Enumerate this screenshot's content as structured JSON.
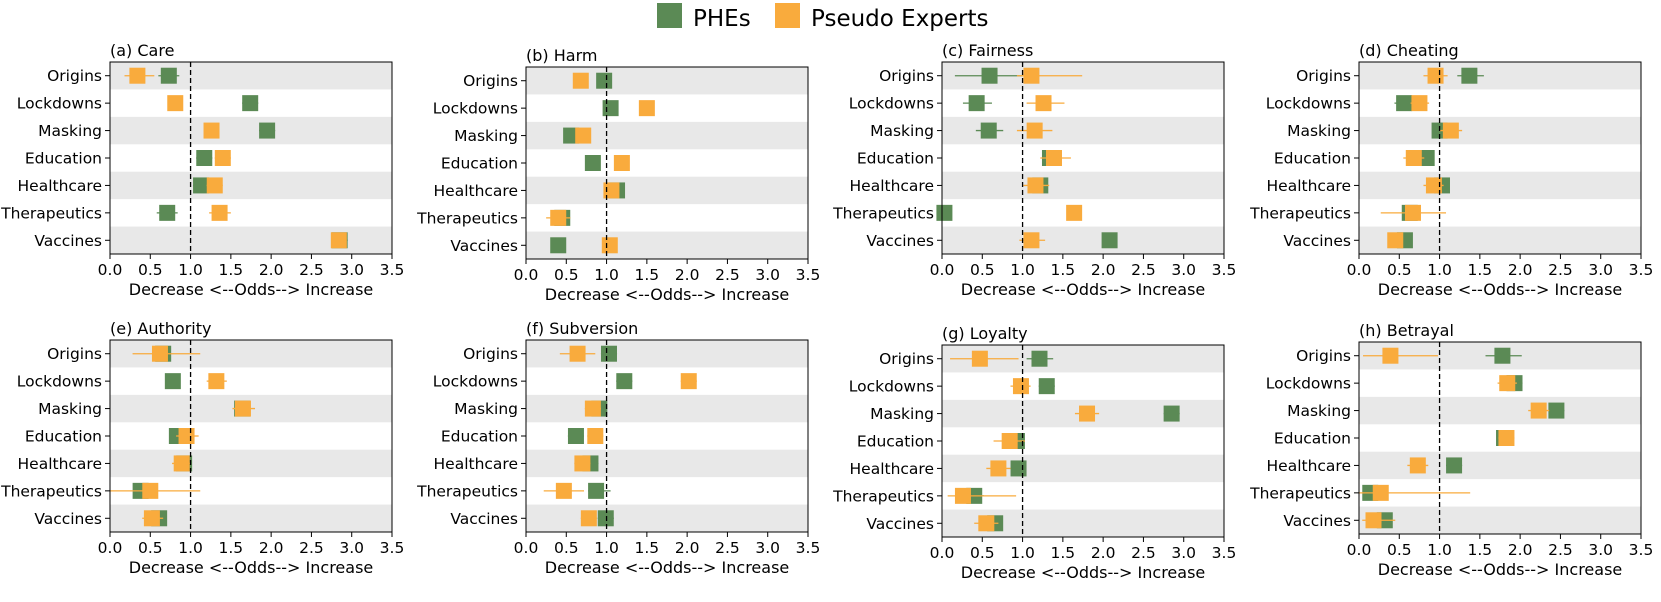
{
  "legend": {
    "items": [
      {
        "label": "PHEs",
        "color": "#5b8a55"
      },
      {
        "label": "Pseudo Experts",
        "color": "#f9ab3d"
      }
    ]
  },
  "colors": {
    "phe": "#5b8a55",
    "pseudo": "#f9ab3d",
    "band": "#e8e8e8"
  },
  "chart_data": [
    {
      "type": "scatter",
      "title": "(a) Care",
      "xlabel": "Decrease <--Odds--> Increase",
      "xlim": [
        0,
        3.5
      ],
      "xticks": [
        "0.0",
        "0.5",
        "1.0",
        "1.5",
        "2.0",
        "2.5",
        "3.0",
        "3.5"
      ],
      "reference_line": 1.0,
      "categories": [
        "Origins",
        "Lockdowns",
        "Masking",
        "Education",
        "Healthcare",
        "Therapeutics",
        "Vaccines"
      ],
      "series": [
        {
          "name": "PHEs",
          "values": [
            0.73,
            1.74,
            1.95,
            1.17,
            1.13,
            0.71,
            2.85
          ],
          "ci": [
            [
              0.6,
              0.86
            ],
            [
              1.64,
              1.84
            ],
            [
              1.85,
              2.05
            ],
            [
              1.07,
              1.27
            ],
            [
              1.03,
              1.23
            ],
            [
              0.58,
              0.84
            ],
            [
              2.75,
              2.95
            ]
          ]
        },
        {
          "name": "Pseudo Experts",
          "values": [
            0.34,
            0.81,
            1.26,
            1.4,
            1.3,
            1.36,
            2.84
          ],
          "ci": [
            [
              0.18,
              0.55
            ],
            [
              0.74,
              0.88
            ],
            [
              1.17,
              1.35
            ],
            [
              1.3,
              1.5
            ],
            [
              1.2,
              1.4
            ],
            [
              1.23,
              1.5
            ],
            [
              2.76,
              2.92
            ]
          ]
        }
      ]
    },
    {
      "type": "scatter",
      "title": "(b) Harm",
      "xlabel": "Decrease <--Odds--> Increase",
      "xlim": [
        0,
        3.5
      ],
      "xticks": [
        "0.0",
        "0.5",
        "1.0",
        "1.5",
        "2.0",
        "2.5",
        "3.0",
        "3.5"
      ],
      "reference_line": 1.0,
      "categories": [
        "Origins",
        "Lockdowns",
        "Masking",
        "Education",
        "Healthcare",
        "Therapeutics",
        "Vaccines"
      ],
      "series": [
        {
          "name": "PHEs",
          "values": [
            0.97,
            1.05,
            0.56,
            0.83,
            1.13,
            0.45,
            0.4
          ],
          "ci": [
            [
              0.9,
              1.05
            ],
            [
              0.98,
              1.12
            ],
            [
              0.49,
              0.63
            ],
            [
              0.76,
              0.9
            ],
            [
              1.06,
              1.2
            ],
            [
              0.38,
              0.53
            ],
            [
              0.33,
              0.47
            ]
          ]
        },
        {
          "name": "Pseudo Experts",
          "values": [
            0.68,
            1.5,
            0.71,
            1.19,
            1.06,
            0.4,
            1.04
          ],
          "ci": [
            [
              0.6,
              0.77
            ],
            [
              1.43,
              1.57
            ],
            [
              0.63,
              0.79
            ],
            [
              1.12,
              1.26
            ],
            [
              0.99,
              1.14
            ],
            [
              0.25,
              0.55
            ],
            [
              0.97,
              1.12
            ]
          ]
        }
      ]
    },
    {
      "type": "scatter",
      "title": "(c) Fairness",
      "xlabel": "Decrease <--Odds--> Increase",
      "xlim": [
        0,
        3.5
      ],
      "xticks": [
        "0.0",
        "0.5",
        "1.0",
        "1.5",
        "2.0",
        "2.5",
        "3.0",
        "3.5"
      ],
      "reference_line": 1.0,
      "categories": [
        "Origins",
        "Lockdowns",
        "Masking",
        "Education",
        "Healthcare",
        "Therapeutics",
        "Vaccines"
      ],
      "series": [
        {
          "name": "PHEs",
          "values": [
            0.59,
            0.43,
            0.58,
            1.34,
            1.22,
            0.03,
            2.08
          ],
          "ci": [
            [
              0.16,
              1.0
            ],
            [
              0.26,
              0.62
            ],
            [
              0.42,
              0.76
            ],
            [
              1.26,
              1.42
            ],
            [
              1.15,
              1.3
            ],
            [
              0.0,
              0.08
            ],
            [
              1.99,
              2.17
            ]
          ]
        },
        {
          "name": "Pseudo Experts",
          "values": [
            1.11,
            1.26,
            1.15,
            1.39,
            1.16,
            1.64,
            1.11
          ],
          "ci": [
            [
              0.93,
              1.74
            ],
            [
              1.05,
              1.52
            ],
            [
              0.93,
              1.37
            ],
            [
              1.22,
              1.6
            ],
            [
              1.01,
              1.33
            ],
            [
              1.57,
              1.71
            ],
            [
              0.96,
              1.28
            ]
          ]
        }
      ]
    },
    {
      "type": "scatter",
      "title": "(d) Cheating",
      "xlabel": "Decrease <--Odds--> Increase",
      "xlim": [
        0,
        3.5
      ],
      "xticks": [
        "0.0",
        "0.5",
        "1.0",
        "1.5",
        "2.0",
        "2.5",
        "3.0",
        "3.5"
      ],
      "reference_line": 1.0,
      "categories": [
        "Origins",
        "Lockdowns",
        "Masking",
        "Education",
        "Healthcare",
        "Therapeutics",
        "Vaccines"
      ],
      "series": [
        {
          "name": "PHEs",
          "values": [
            1.37,
            0.56,
            1.0,
            0.84,
            1.03,
            0.63,
            0.57
          ],
          "ci": [
            [
              1.22,
              1.55
            ],
            [
              0.44,
              0.7
            ],
            [
              0.93,
              1.07
            ],
            [
              0.77,
              0.91
            ],
            [
              0.96,
              1.1
            ],
            [
              0.56,
              0.7
            ],
            [
              0.52,
              0.62
            ]
          ]
        },
        {
          "name": "Pseudo Experts",
          "values": [
            0.95,
            0.75,
            1.14,
            0.68,
            0.93,
            0.67,
            0.45
          ],
          "ci": [
            [
              0.8,
              1.1
            ],
            [
              0.64,
              0.87
            ],
            [
              1.0,
              1.28
            ],
            [
              0.55,
              0.81
            ],
            [
              0.8,
              1.05
            ],
            [
              0.27,
              1.08
            ],
            [
              0.38,
              0.53
            ]
          ]
        }
      ]
    },
    {
      "type": "scatter",
      "title": "(e) Authority",
      "xlabel": "Decrease <--Odds--> Increase",
      "xlim": [
        0,
        3.5
      ],
      "xticks": [
        "0.0",
        "0.5",
        "1.0",
        "1.5",
        "2.0",
        "2.5",
        "3.0",
        "3.5"
      ],
      "reference_line": 1.0,
      "categories": [
        "Origins",
        "Lockdowns",
        "Masking",
        "Education",
        "Healthcare",
        "Therapeutics",
        "Vaccines"
      ],
      "series": [
        {
          "name": "PHEs",
          "values": [
            0.66,
            0.78,
            1.64,
            0.83,
            0.92,
            0.38,
            0.61
          ],
          "ci": [
            [
              0.58,
              0.74
            ],
            [
              0.7,
              0.86
            ],
            [
              1.56,
              1.72
            ],
            [
              0.75,
              0.91
            ],
            [
              0.84,
              1.0
            ],
            [
              0.3,
              0.46
            ],
            [
              0.53,
              0.69
            ]
          ]
        },
        {
          "name": "Pseudo Experts",
          "values": [
            0.62,
            1.32,
            1.65,
            0.95,
            0.89,
            0.5,
            0.52
          ],
          "ci": [
            [
              0.28,
              1.12
            ],
            [
              1.2,
              1.45
            ],
            [
              1.52,
              1.8
            ],
            [
              0.82,
              1.1
            ],
            [
              0.77,
              1.0
            ],
            [
              0.0,
              1.12
            ],
            [
              0.4,
              0.66
            ]
          ]
        }
      ]
    },
    {
      "type": "scatter",
      "title": "(f) Subversion",
      "xlabel": "Decrease <--Odds--> Increase",
      "xlim": [
        0,
        3.5
      ],
      "xticks": [
        "0.0",
        "0.5",
        "1.0",
        "1.5",
        "2.0",
        "2.5",
        "3.0",
        "3.5"
      ],
      "reference_line": 1.0,
      "categories": [
        "Origins",
        "Lockdowns",
        "Masking",
        "Education",
        "Healthcare",
        "Therapeutics",
        "Vaccines"
      ],
      "series": [
        {
          "name": "PHEs",
          "values": [
            1.03,
            1.22,
            0.91,
            0.62,
            0.8,
            0.87,
            0.99
          ],
          "ci": [
            [
              0.93,
              1.13
            ],
            [
              1.12,
              1.32
            ],
            [
              0.81,
              1.01
            ],
            [
              0.52,
              0.72
            ],
            [
              0.7,
              0.9
            ],
            [
              0.77,
              1.05
            ],
            [
              0.89,
              1.09
            ]
          ]
        },
        {
          "name": "Pseudo Experts",
          "values": [
            0.64,
            2.02,
            0.83,
            0.86,
            0.7,
            0.47,
            0.78
          ],
          "ci": [
            [
              0.42,
              0.86
            ],
            [
              1.92,
              2.12
            ],
            [
              0.73,
              0.93
            ],
            [
              0.76,
              0.96
            ],
            [
              0.6,
              0.8
            ],
            [
              0.22,
              0.72
            ],
            [
              0.68,
              0.88
            ]
          ]
        }
      ]
    },
    {
      "type": "scatter",
      "title": "(g) Loyalty",
      "xlabel": "Decrease <--Odds--> Increase",
      "xlim": [
        0,
        3.5
      ],
      "xticks": [
        "0.0",
        "0.5",
        "1.0",
        "1.5",
        "2.0",
        "2.5",
        "3.0",
        "3.5"
      ],
      "reference_line": 1.0,
      "categories": [
        "Origins",
        "Lockdowns",
        "Masking",
        "Education",
        "Healthcare",
        "Therapeutics",
        "Vaccines"
      ],
      "series": [
        {
          "name": "PHEs",
          "values": [
            1.21,
            1.3,
            2.85,
            0.93,
            0.95,
            0.4,
            0.66
          ],
          "ci": [
            [
              1.05,
              1.38
            ],
            [
              1.2,
              1.4
            ],
            [
              2.75,
              2.95
            ],
            [
              0.85,
              1.01
            ],
            [
              0.87,
              1.03
            ],
            [
              0.28,
              0.52
            ],
            [
              0.58,
              0.74
            ]
          ]
        },
        {
          "name": "Pseudo Experts",
          "values": [
            0.47,
            0.98,
            1.8,
            0.84,
            0.7,
            0.26,
            0.55
          ],
          "ci": [
            [
              0.1,
              0.95
            ],
            [
              0.85,
              1.1
            ],
            [
              1.65,
              1.95
            ],
            [
              0.64,
              1.03
            ],
            [
              0.55,
              0.85
            ],
            [
              0.07,
              0.92
            ],
            [
              0.4,
              0.7
            ]
          ]
        }
      ]
    },
    {
      "type": "scatter",
      "title": "(h) Betrayal",
      "xlabel": "Decrease <--Odds--> Increase",
      "xlim": [
        0,
        3.5
      ],
      "xticks": [
        "0.0",
        "0.5",
        "1.0",
        "1.5",
        "2.0",
        "2.5",
        "3.0",
        "3.5"
      ],
      "reference_line": 1.0,
      "categories": [
        "Origins",
        "Lockdowns",
        "Masking",
        "Education",
        "Healthcare",
        "Therapeutics",
        "Vaccines"
      ],
      "series": [
        {
          "name": "PHEs",
          "values": [
            1.78,
            1.93,
            2.45,
            1.8,
            1.18,
            0.14,
            0.32
          ],
          "ci": [
            [
              1.57,
              2.02
            ],
            [
              1.83,
              2.03
            ],
            [
              2.35,
              2.55
            ],
            [
              1.72,
              1.88
            ],
            [
              1.08,
              1.28
            ],
            [
              0.06,
              0.22
            ],
            [
              0.24,
              0.4
            ]
          ]
        },
        {
          "name": "Pseudo Experts",
          "values": [
            0.39,
            1.84,
            2.23,
            1.83,
            0.73,
            0.27,
            0.18
          ],
          "ci": [
            [
              0.05,
              0.98
            ],
            [
              1.72,
              1.96
            ],
            [
              2.1,
              2.36
            ],
            [
              1.73,
              1.93
            ],
            [
              0.6,
              0.86
            ],
            [
              0.0,
              1.38
            ],
            [
              0.04,
              0.45
            ]
          ]
        }
      ]
    }
  ]
}
